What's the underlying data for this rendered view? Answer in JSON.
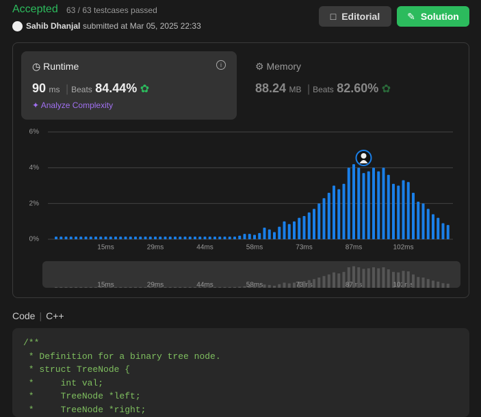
{
  "header": {
    "status": "Accepted",
    "testcases": "63 / 63 testcases passed",
    "user": "Sahib Dhanjal",
    "submitted": "submitted at Mar 05, 2025 22:33"
  },
  "buttons": {
    "editorial": "Editorial",
    "solution": "Solution"
  },
  "runtime": {
    "label": "Runtime",
    "value": "90",
    "unit": "ms",
    "beats_label": "Beats",
    "beats": "84.44%",
    "analyze": "Analyze Complexity"
  },
  "memory": {
    "label": "Memory",
    "value": "88.24",
    "unit": "MB",
    "beats_label": "Beats",
    "beats": "82.60%"
  },
  "chart_data": {
    "type": "bar",
    "categories": [
      null,
      null,
      null,
      null,
      null,
      null,
      null,
      null,
      null,
      null,
      "15ms",
      null,
      null,
      null,
      null,
      null,
      null,
      null,
      null,
      null,
      "29ms",
      null,
      null,
      null,
      null,
      null,
      null,
      null,
      null,
      null,
      "44ms",
      null,
      null,
      null,
      null,
      null,
      null,
      null,
      null,
      null,
      "58ms",
      null,
      null,
      null,
      null,
      null,
      null,
      null,
      null,
      null,
      "73ms",
      null,
      null,
      null,
      null,
      null,
      null,
      null,
      null,
      null,
      "87ms",
      null,
      null,
      null,
      null,
      null,
      null,
      null,
      null,
      null,
      "102ms",
      null,
      null,
      null,
      null,
      null,
      null,
      null,
      null,
      null
    ],
    "values": [
      0.15,
      0.15,
      0.15,
      0.15,
      0.15,
      0.15,
      0.15,
      0.15,
      0.15,
      0.15,
      0.15,
      0.15,
      0.15,
      0.15,
      0.15,
      0.15,
      0.15,
      0.15,
      0.15,
      0.15,
      0.15,
      0.15,
      0.15,
      0.15,
      0.15,
      0.15,
      0.15,
      0.15,
      0.15,
      0.15,
      0.15,
      0.15,
      0.15,
      0.15,
      0.15,
      0.15,
      0.15,
      0.2,
      0.3,
      0.3,
      0.25,
      0.35,
      0.65,
      0.55,
      0.4,
      0.7,
      1.0,
      0.85,
      1.0,
      1.2,
      1.3,
      1.5,
      1.7,
      2.0,
      2.3,
      2.6,
      3.0,
      2.8,
      3.1,
      4.0,
      4.2,
      4.0,
      3.7,
      3.8,
      4.0,
      3.8,
      4.0,
      3.6,
      3.1,
      3.0,
      3.3,
      3.2,
      2.6,
      2.1,
      2.0,
      1.7,
      1.4,
      1.2,
      0.9,
      0.8
    ],
    "color": "#1a7fe8",
    "ylim": [
      0,
      6
    ],
    "yticks": [
      {
        "value": 0,
        "label": "0%"
      },
      {
        "value": 2,
        "label": "2%"
      },
      {
        "value": 4,
        "label": "4%"
      },
      {
        "value": 6,
        "label": "6%"
      }
    ],
    "grid": true
  },
  "code": {
    "label": "Code",
    "language": "C++",
    "lines": [
      "/**",
      " * Definition for a binary tree node.",
      " * struct TreeNode {",
      " *     int val;",
      " *     TreeNode *left;",
      " *     TreeNode *right;"
    ]
  }
}
